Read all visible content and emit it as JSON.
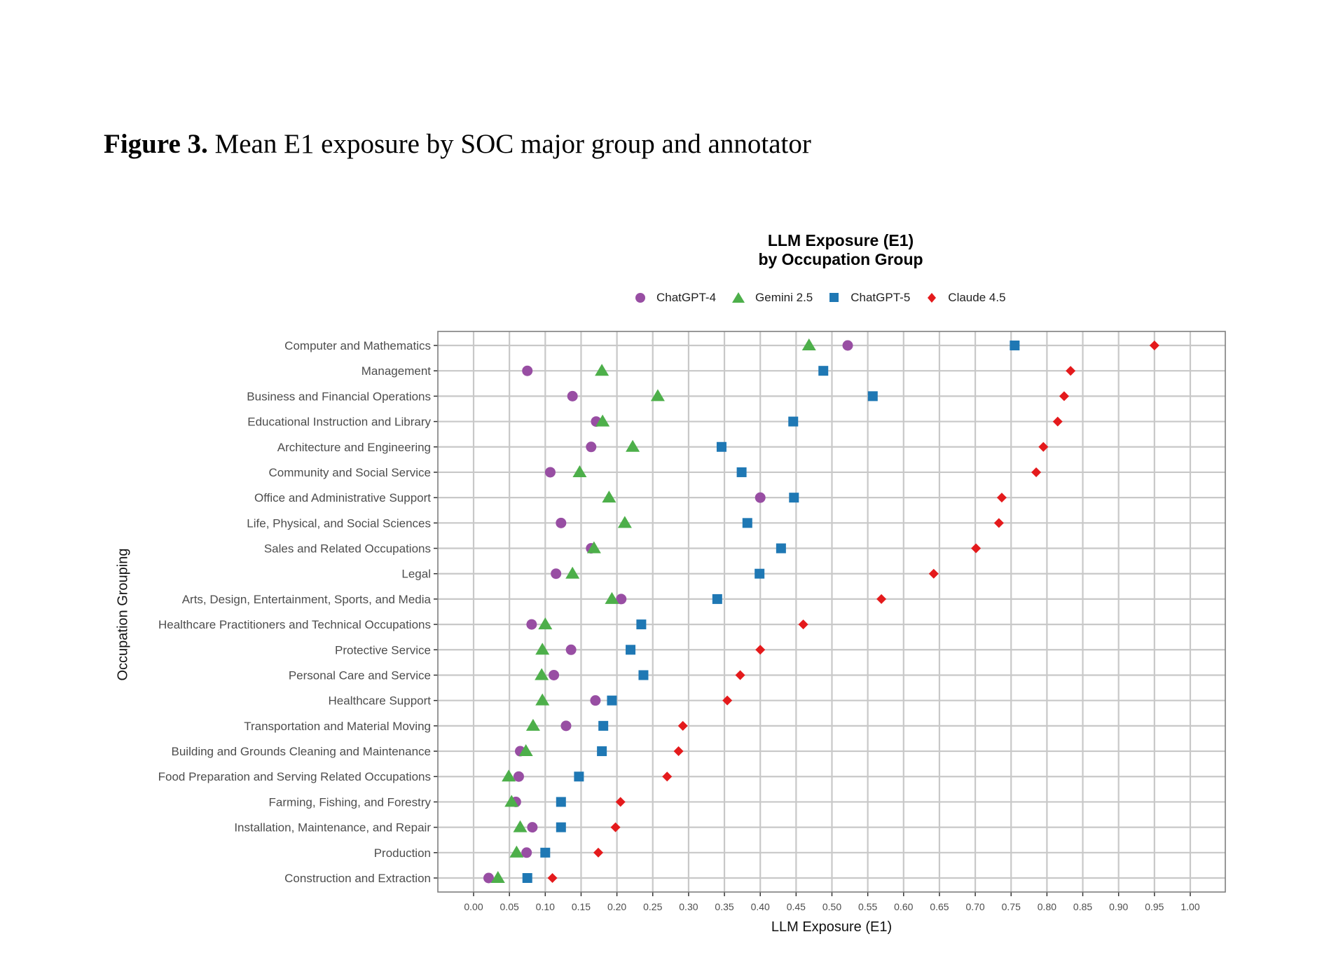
{
  "figure_caption": {
    "label": "Figure 3.",
    "text": " Mean E1 exposure by SOC major group and annotator"
  },
  "chart": {
    "title_line1": "LLM Exposure (E1)",
    "title_line2": "by Occupation Group",
    "xlabel": "LLM Exposure (E1)",
    "ylabel": "Occupation Grouping"
  },
  "legend": [
    {
      "name": "ChatGPT-4",
      "shape": "circle",
      "color": "#984EA3"
    },
    {
      "name": "Gemini 2.5",
      "shape": "triangle",
      "color": "#4DAF4A"
    },
    {
      "name": "ChatGPT-5",
      "shape": "square",
      "color": "#1F78B4"
    },
    {
      "name": "Claude 4.5",
      "shape": "diamond",
      "color": "#E41A1C"
    }
  ],
  "chart_data": {
    "type": "scatter",
    "title": "LLM Exposure (E1) by Occupation Group",
    "xlabel": "LLM Exposure (E1)",
    "ylabel": "Occupation Grouping",
    "xlim": [
      -0.05,
      1.05
    ],
    "xticks": [
      "0.00",
      "0.05",
      "0.10",
      "0.15",
      "0.20",
      "0.25",
      "0.30",
      "0.35",
      "0.40",
      "0.45",
      "0.50",
      "0.55",
      "0.60",
      "0.65",
      "0.70",
      "0.75",
      "0.80",
      "0.85",
      "0.90",
      "0.95",
      "1.00"
    ],
    "grid": true,
    "legend_position": "top",
    "categories": [
      "Computer and Mathematics",
      "Management",
      "Business and Financial Operations",
      "Educational Instruction and Library",
      "Architecture and Engineering",
      "Community and Social Service",
      "Office and Administrative Support",
      "Life, Physical, and Social Sciences",
      "Sales and Related Occupations",
      "Legal",
      "Arts, Design, Entertainment, Sports, and Media",
      "Healthcare Practitioners and Technical Occupations",
      "Protective Service",
      "Personal Care and Service",
      "Healthcare Support",
      "Transportation and Material Moving",
      "Building and Grounds Cleaning and Maintenance",
      "Food Preparation and Serving Related Occupations",
      "Farming, Fishing, and Forestry",
      "Installation, Maintenance, and Repair",
      "Production",
      "Construction and Extraction"
    ],
    "series": [
      {
        "name": "ChatGPT-4",
        "shape": "circle",
        "color": "#984EA3",
        "values": [
          0.522,
          0.075,
          0.138,
          0.171,
          0.164,
          0.107,
          0.4,
          0.122,
          0.164,
          0.115,
          0.206,
          0.081,
          0.136,
          0.112,
          0.17,
          0.129,
          0.065,
          0.063,
          0.059,
          0.082,
          0.074,
          0.021
        ]
      },
      {
        "name": "Gemini 2.5",
        "shape": "triangle",
        "color": "#4DAF4A",
        "values": [
          0.468,
          0.179,
          0.257,
          0.18,
          0.222,
          0.148,
          0.189,
          0.211,
          0.168,
          0.138,
          0.193,
          0.1,
          0.096,
          0.095,
          0.096,
          0.083,
          0.073,
          0.049,
          0.053,
          0.065,
          0.06,
          0.034
        ]
      },
      {
        "name": "ChatGPT-5",
        "shape": "square",
        "color": "#1F78B4",
        "values": [
          0.755,
          0.488,
          0.557,
          0.446,
          0.346,
          0.374,
          0.447,
          0.382,
          0.429,
          0.399,
          0.34,
          0.234,
          0.219,
          0.237,
          0.193,
          0.181,
          0.179,
          0.147,
          0.122,
          0.122,
          0.1,
          0.075
        ]
      },
      {
        "name": "Claude 4.5",
        "shape": "diamond",
        "color": "#E41A1C",
        "values": [
          0.95,
          0.833,
          0.824,
          0.815,
          0.795,
          0.785,
          0.737,
          0.733,
          0.701,
          0.642,
          0.569,
          0.46,
          0.4,
          0.372,
          0.354,
          0.292,
          0.286,
          0.27,
          0.205,
          0.198,
          0.174,
          0.11
        ]
      }
    ]
  }
}
